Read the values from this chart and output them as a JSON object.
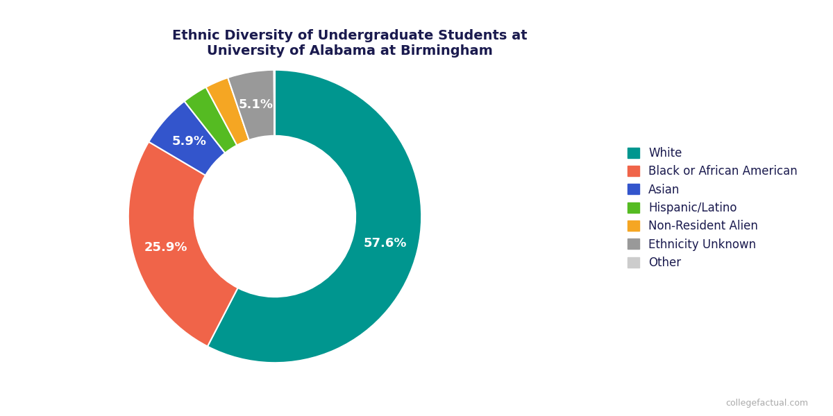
{
  "title": "Ethnic Diversity of Undergraduate Students at\nUniversity of Alabama at Birmingham",
  "labels": [
    "White",
    "Black or African American",
    "Asian",
    "Hispanic/Latino",
    "Non-Resident Alien",
    "Ethnicity Unknown",
    "Other"
  ],
  "values": [
    57.6,
    25.9,
    5.9,
    2.8,
    2.6,
    5.1,
    0.1
  ],
  "colors": [
    "#00968F",
    "#F06449",
    "#3355CC",
    "#55BB22",
    "#F5A623",
    "#999999",
    "#CCCCCC"
  ],
  "pct_labels": [
    "57.6%",
    "25.9%",
    "5.9%",
    "",
    "",
    "5.1%",
    ""
  ],
  "title_color": "#1a1a4e",
  "label_color": "#1a1a4e",
  "background_color": "#ffffff",
  "watermark": "collegefactual.com",
  "title_fontsize": 14,
  "legend_fontsize": 12,
  "pct_fontsize": 13
}
